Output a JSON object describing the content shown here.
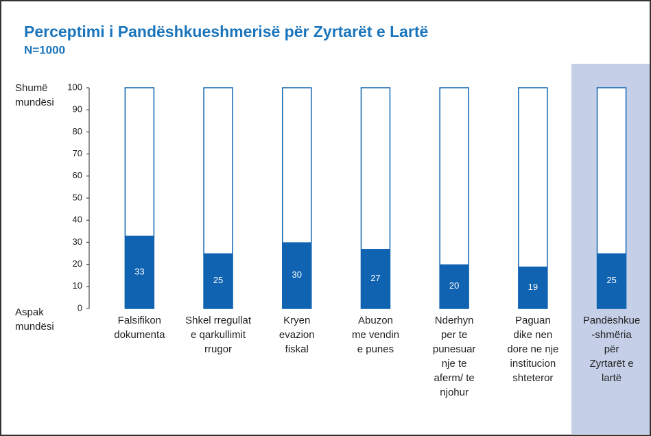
{
  "chart_data": {
    "type": "bar",
    "title": "Perceptimi i Pandëshkueshmerisë për Zyrtarët e Lartë",
    "subtitle": "N=1000",
    "annotations": [
      "Shumë\nmundësi",
      "Aspak\nmundësi"
    ],
    "categories": [
      "Falsifikon\ndokumenta",
      "Shkel rregullat\ne qarkullimit\nrrugor",
      "Kryen\nevazion\nfiskal",
      "Abuzon\nme vendin\ne punes",
      "Nderhyn\nper te\npunesuar\nnje te\naferm/ te\nnjohur",
      "Paguan\ndike nen\ndore ne nje\ninstitucion\nshteteror",
      "Pandëshkue\n-shmëria për\nZyrtarët e\nlartë"
    ],
    "values": [
      33,
      25,
      30,
      27,
      20,
      19,
      25
    ],
    "color": "#0f63b1",
    "ylim": [
      0,
      100
    ],
    "yticks": [
      0,
      10,
      20,
      30,
      40,
      50,
      60,
      70,
      80,
      90,
      100
    ],
    "grid": false
  }
}
